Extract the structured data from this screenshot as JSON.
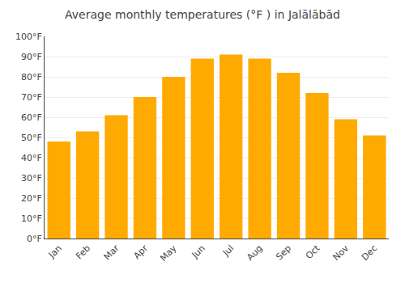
{
  "chart_data": {
    "type": "bar",
    "title": "Average monthly temperatures (°F ) in Jalālābād",
    "categories": [
      "Jan",
      "Feb",
      "Mar",
      "Apr",
      "May",
      "Jun",
      "Jul",
      "Aug",
      "Sep",
      "Oct",
      "Nov",
      "Dec"
    ],
    "values": [
      48,
      53,
      61,
      70,
      80,
      89,
      91,
      89,
      82,
      72,
      59,
      51
    ],
    "color": "#FFAA00",
    "ylim": [
      0,
      100
    ],
    "yticks": [
      {
        "value": 0,
        "label": "0°F"
      },
      {
        "value": 10,
        "label": "10°F"
      },
      {
        "value": 20,
        "label": "20°F"
      },
      {
        "value": 30,
        "label": "30°F"
      },
      {
        "value": 40,
        "label": "40°F"
      },
      {
        "value": 50,
        "label": "50°F"
      },
      {
        "value": 60,
        "label": "60°F"
      },
      {
        "value": 70,
        "label": "70°F"
      },
      {
        "value": 80,
        "label": "80°F"
      },
      {
        "value": 90,
        "label": "90°F"
      },
      {
        "value": 100,
        "label": "100°F"
      }
    ],
    "grid": true
  }
}
